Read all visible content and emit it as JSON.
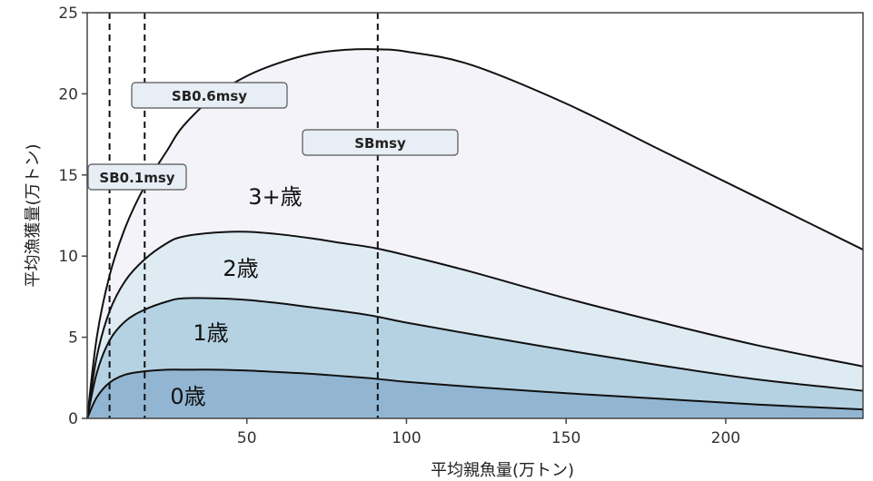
{
  "chart_data": {
    "type": "area",
    "xlabel": "平均親魚量(万トン)",
    "ylabel": "平均漁獲量(万トン)",
    "xlim": [
      0,
      243
    ],
    "ylim": [
      0,
      25
    ],
    "xticks": [
      50,
      100,
      150,
      200
    ],
    "yticks": [
      0,
      5,
      10,
      15,
      20,
      25
    ],
    "grid": false,
    "x": [
      0,
      3,
      7,
      12,
      18,
      25,
      30,
      40,
      50,
      60,
      70,
      80,
      90,
      100,
      120,
      150,
      180,
      210,
      243
    ],
    "series": [
      {
        "name": "0歳",
        "values": [
          0,
          1.3,
          2.2,
          2.7,
          2.9,
          3.0,
          3.0,
          3.0,
          2.95,
          2.85,
          2.75,
          2.6,
          2.45,
          2.25,
          1.95,
          1.55,
          1.2,
          0.85,
          0.55
        ]
      },
      {
        "name": "1歳",
        "values": [
          0,
          2.8,
          4.8,
          6.0,
          6.7,
          7.2,
          7.4,
          7.4,
          7.3,
          7.1,
          6.85,
          6.6,
          6.3,
          5.9,
          5.2,
          4.2,
          3.25,
          2.4,
          1.7
        ]
      },
      {
        "name": "2歳",
        "values": [
          0,
          3.8,
          6.6,
          8.5,
          9.8,
          10.8,
          11.2,
          11.45,
          11.5,
          11.35,
          11.1,
          10.8,
          10.5,
          10.05,
          9.05,
          7.4,
          5.9,
          4.5,
          3.2
        ]
      },
      {
        "name": "3+歳",
        "values": [
          0,
          5.0,
          8.8,
          11.8,
          14.3,
          16.5,
          18.0,
          19.9,
          21.1,
          21.9,
          22.45,
          22.7,
          22.75,
          22.6,
          21.8,
          19.4,
          16.5,
          13.6,
          10.4
        ]
      }
    ],
    "reference_lines": [
      {
        "label": "SB0.1msy",
        "x": 7
      },
      {
        "label": "SB0.6msy",
        "x": 18
      },
      {
        "label": "SBmsy",
        "x": 91
      }
    ],
    "colors": [
      "#92b5d1",
      "#b5d2e3",
      "#deebf2",
      "#f3f3f9"
    ]
  }
}
